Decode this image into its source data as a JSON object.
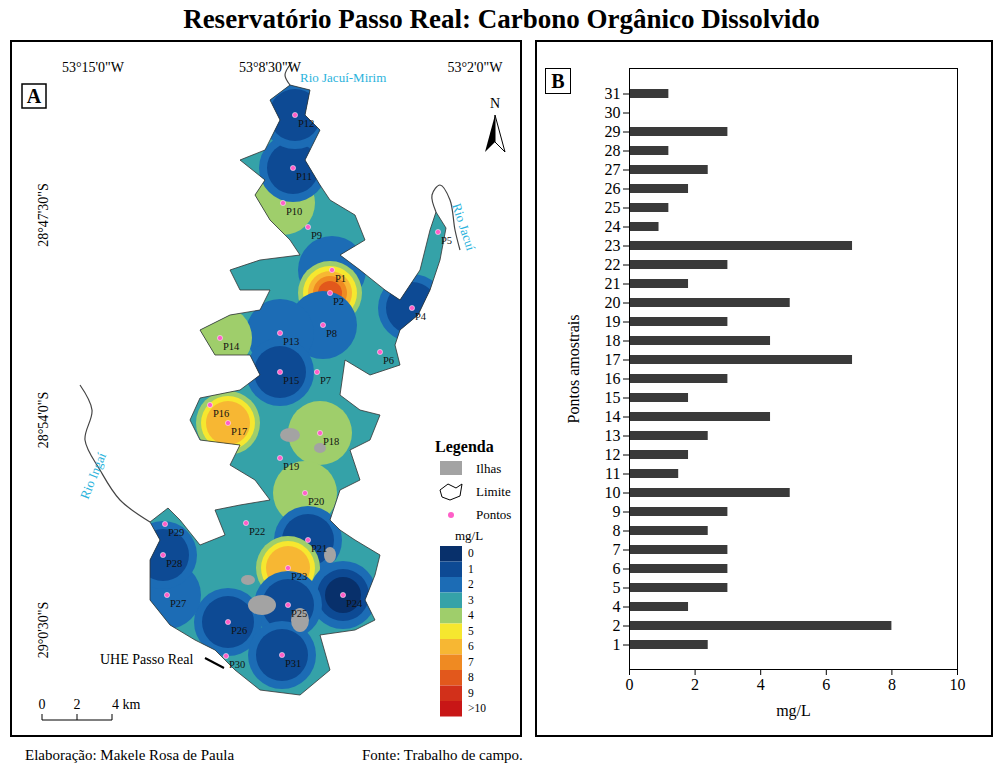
{
  "title": "Reservatório Passo Real: Carbono Orgânico Dissolvido",
  "credits": {
    "elaboration": "Elaboração: Makele Rosa de Paula",
    "source": "Fonte: Trabalho de campo."
  },
  "map": {
    "panel": "A",
    "longitude_labels": [
      "53°15'0\"W",
      "53°8'30\"W",
      "53°2'0\"W"
    ],
    "latitude_labels": [
      "28°47'30\"S",
      "28°54'0\"S",
      "29°0'30\"S"
    ],
    "rivers": [
      "Rio Jacuí-Mirim",
      "Rio Jacuí",
      "Rio Ingaí"
    ],
    "dam_label": "UHE Passo Real",
    "north": "N",
    "scale_bar": [
      "0",
      "2",
      "4 km"
    ],
    "points": [
      {
        "label": "P1",
        "value": 2.4
      },
      {
        "label": "P2",
        "value": 8.0
      },
      {
        "label": "P4",
        "value": 1.8
      },
      {
        "label": "P5",
        "value": 3.0
      },
      {
        "label": "P6",
        "value": 3.0
      },
      {
        "label": "P7",
        "value": 3.0
      },
      {
        "label": "P8",
        "value": 2.4
      },
      {
        "label": "P9",
        "value": 3.0
      },
      {
        "label": "P10",
        "value": 4.9
      },
      {
        "label": "P11",
        "value": 1.5
      },
      {
        "label": "P12",
        "value": 1.8
      },
      {
        "label": "P13",
        "value": 2.4
      },
      {
        "label": "P14",
        "value": 4.3
      },
      {
        "label": "P15",
        "value": 1.8
      },
      {
        "label": "P16",
        "value": 3.0
      },
      {
        "label": "P17",
        "value": 6.8
      },
      {
        "label": "P18",
        "value": 4.3
      },
      {
        "label": "P19",
        "value": 3.0
      },
      {
        "label": "P20",
        "value": 4.9
      },
      {
        "label": "P21",
        "value": 1.8
      },
      {
        "label": "P22",
        "value": 3.0
      },
      {
        "label": "P23",
        "value": 6.8
      },
      {
        "label": "P24",
        "value": 0.9
      },
      {
        "label": "P25",
        "value": 1.2
      },
      {
        "label": "P26",
        "value": 1.8
      },
      {
        "label": "P27",
        "value": 2.4
      },
      {
        "label": "P28",
        "value": 1.2
      },
      {
        "label": "P29",
        "value": 3.0
      },
      {
        "label": "P30",
        "value": null
      },
      {
        "label": "P31",
        "value": 1.2
      }
    ],
    "legend": {
      "title": "Legenda",
      "items": [
        "Ilhas",
        "Limite",
        "Pontos"
      ],
      "unit": "mg/L",
      "class_labels": [
        "0",
        "1",
        "2",
        "3",
        "4",
        "5",
        "6",
        "7",
        "8",
        "9",
        ">10"
      ],
      "class_colors": [
        "#08306b",
        "#0d4a94",
        "#1c6cb5",
        "#35a2a8",
        "#9fce6b",
        "#f6e72f",
        "#f7b733",
        "#ef8a22",
        "#e2581c",
        "#d2301a",
        "#c81616"
      ],
      "breaks": [
        1,
        2,
        3,
        4,
        5,
        6,
        7,
        8,
        9,
        10
      ]
    }
  },
  "chart_data": {
    "type": "bar",
    "panel": "B",
    "orientation": "horizontal",
    "categories": [
      "31",
      "30",
      "29",
      "28",
      "27",
      "26",
      "25",
      "24",
      "23",
      "22",
      "21",
      "20",
      "19",
      "18",
      "17",
      "16",
      "15",
      "14",
      "13",
      "12",
      "11",
      "10",
      "9",
      "8",
      "7",
      "6",
      "5",
      "4",
      "2",
      "1"
    ],
    "values": [
      1.2,
      null,
      3.0,
      1.2,
      2.4,
      1.8,
      1.2,
      0.9,
      6.8,
      3.0,
      1.8,
      4.9,
      3.0,
      4.3,
      6.8,
      3.0,
      1.8,
      4.3,
      2.4,
      1.8,
      1.5,
      4.9,
      3.0,
      2.4,
      3.0,
      3.0,
      3.0,
      1.8,
      8.0,
      2.4
    ],
    "color": "#3a3a3a",
    "x_label": "mg/L",
    "y_label": "Pontos amostrais",
    "xlim": [
      0,
      10
    ],
    "xticks": [
      0,
      2,
      4,
      6,
      8,
      10
    ],
    "grid": false
  }
}
